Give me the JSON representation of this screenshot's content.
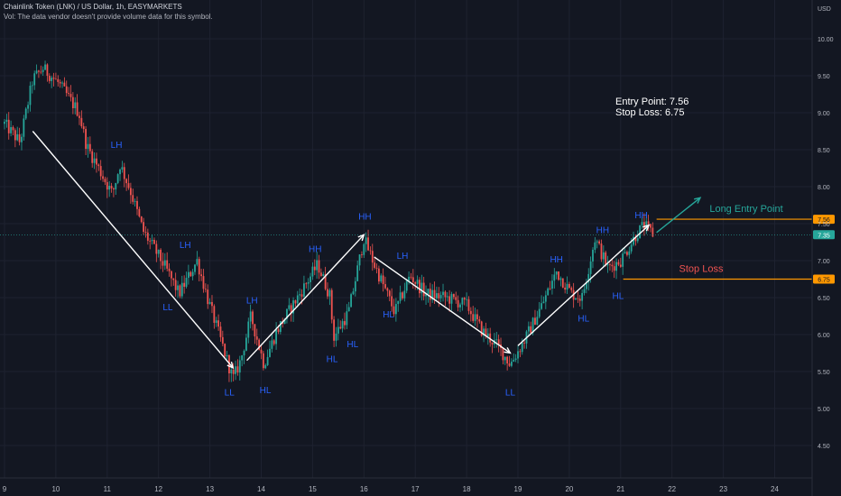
{
  "header": {
    "title": "Chainlink Token (LNK) / US Dollar, 1h, EASYMARKETS",
    "volume_note": "Vol: The data vendor doesn't provide volume data for this symbol."
  },
  "notes": {
    "entry": "Entry Point: 7.56",
    "stop": "Stop Loss: 6.75"
  },
  "colors": {
    "background": "#131722",
    "up": "#26a69a",
    "down": "#ef5350",
    "pivot_label": "#2962ff",
    "level_line": "#ff9800",
    "long_entry_text": "#26a69a",
    "stop_loss_text": "#ef5350",
    "current_price_box": "#26a69a"
  },
  "chart_data": {
    "type": "candlestick",
    "symbol": "Chainlink Token (LNK) / US Dollar",
    "interval": "1h",
    "currency": "USD",
    "x_ticks": [
      "9",
      "10",
      "11",
      "12",
      "13",
      "14",
      "15",
      "16",
      "17",
      "18",
      "19",
      "20",
      "21",
      "22",
      "23",
      "24"
    ],
    "y_ticks": [
      "10.00",
      "9.50",
      "9.00",
      "8.50",
      "8.00",
      "7.50",
      "7.00",
      "6.50",
      "6.00",
      "5.50",
      "5.00",
      "4.50"
    ],
    "ylim": [
      4.1,
      10.4
    ],
    "price_path": [
      {
        "day": 9.0,
        "price": 8.85
      },
      {
        "day": 9.3,
        "price": 8.6
      },
      {
        "day": 9.55,
        "price": 9.45
      },
      {
        "day": 9.75,
        "price": 9.6
      },
      {
        "day": 10.05,
        "price": 9.4
      },
      {
        "day": 10.45,
        "price": 9.0
      },
      {
        "day": 10.6,
        "price": 8.55
      },
      {
        "day": 11.1,
        "price": 7.9
      },
      {
        "day": 11.25,
        "price": 8.3
      },
      {
        "day": 11.45,
        "price": 7.95
      },
      {
        "day": 11.7,
        "price": 7.4
      },
      {
        "day": 12.1,
        "price": 6.95
      },
      {
        "day": 12.4,
        "price": 6.55
      },
      {
        "day": 12.75,
        "price": 7.0
      },
      {
        "day": 12.95,
        "price": 6.5
      },
      {
        "day": 13.2,
        "price": 5.95
      },
      {
        "day": 13.45,
        "price": 5.4
      },
      {
        "day": 13.6,
        "price": 5.65
      },
      {
        "day": 13.8,
        "price": 6.25
      },
      {
        "day": 14.05,
        "price": 5.6
      },
      {
        "day": 14.3,
        "price": 6.05
      },
      {
        "day": 14.75,
        "price": 6.55
      },
      {
        "day": 15.1,
        "price": 6.95
      },
      {
        "day": 15.35,
        "price": 6.5
      },
      {
        "day": 15.4,
        "price": 5.95
      },
      {
        "day": 15.7,
        "price": 6.3
      },
      {
        "day": 16.0,
        "price": 7.3
      },
      {
        "day": 16.2,
        "price": 6.95
      },
      {
        "day": 16.45,
        "price": 6.55
      },
      {
        "day": 16.6,
        "price": 6.3
      },
      {
        "day": 16.9,
        "price": 6.8
      },
      {
        "day": 17.2,
        "price": 6.55
      },
      {
        "day": 17.6,
        "price": 6.5
      },
      {
        "day": 18.0,
        "price": 6.4
      },
      {
        "day": 18.3,
        "price": 6.05
      },
      {
        "day": 18.6,
        "price": 5.85
      },
      {
        "day": 18.85,
        "price": 5.6
      },
      {
        "day": 19.15,
        "price": 5.95
      },
      {
        "day": 19.5,
        "price": 6.45
      },
      {
        "day": 19.75,
        "price": 6.85
      },
      {
        "day": 20.05,
        "price": 6.55
      },
      {
        "day": 20.25,
        "price": 6.5
      },
      {
        "day": 20.5,
        "price": 7.3
      },
      {
        "day": 20.75,
        "price": 6.9
      },
      {
        "day": 21.0,
        "price": 7.0
      },
      {
        "day": 21.3,
        "price": 7.35
      },
      {
        "day": 21.45,
        "price": 7.48
      },
      {
        "day": 21.65,
        "price": 7.35
      }
    ],
    "pivots": [
      {
        "label": "LH",
        "day": 11.18,
        "price": 8.45,
        "pos": "above"
      },
      {
        "label": "LH",
        "day": 12.52,
        "price": 7.1,
        "pos": "above"
      },
      {
        "label": "LL",
        "day": 12.18,
        "price": 6.5,
        "pos": "below"
      },
      {
        "label": "LL",
        "day": 13.38,
        "price": 5.35,
        "pos": "below"
      },
      {
        "label": "LH",
        "day": 13.82,
        "price": 6.35,
        "pos": "above"
      },
      {
        "label": "HL",
        "day": 14.08,
        "price": 5.38,
        "pos": "below"
      },
      {
        "label": "HH",
        "day": 15.05,
        "price": 7.04,
        "pos": "above"
      },
      {
        "label": "HL",
        "day": 15.78,
        "price": 6.0,
        "pos": "below"
      },
      {
        "label": "HL",
        "day": 15.38,
        "price": 5.8,
        "pos": "below"
      },
      {
        "label": "HH",
        "day": 16.02,
        "price": 7.48,
        "pos": "above"
      },
      {
        "label": "HL",
        "day": 16.48,
        "price": 6.4,
        "pos": "below"
      },
      {
        "label": "LH",
        "day": 16.75,
        "price": 6.95,
        "pos": "above"
      },
      {
        "label": "LL",
        "day": 18.85,
        "price": 5.35,
        "pos": "below"
      },
      {
        "label": "HH",
        "day": 19.75,
        "price": 6.9,
        "pos": "above"
      },
      {
        "label": "HL",
        "day": 20.28,
        "price": 6.35,
        "pos": "below"
      },
      {
        "label": "HH",
        "day": 20.65,
        "price": 7.3,
        "pos": "above"
      },
      {
        "label": "HL",
        "day": 20.95,
        "price": 6.65,
        "pos": "below"
      },
      {
        "label": "HH",
        "day": 21.4,
        "price": 7.5,
        "pos": "above"
      }
    ],
    "trend_arrows": [
      {
        "from": {
          "day": 9.55,
          "price": 8.75
        },
        "to": {
          "day": 13.45,
          "price": 5.55
        }
      },
      {
        "from": {
          "day": 13.72,
          "price": 5.65
        },
        "to": {
          "day": 16.0,
          "price": 7.35
        }
      },
      {
        "from": {
          "day": 16.2,
          "price": 7.05
        },
        "to": {
          "day": 18.85,
          "price": 5.75
        }
      },
      {
        "from": {
          "day": 19.0,
          "price": 5.85
        },
        "to": {
          "day": 21.55,
          "price": 7.48
        }
      }
    ],
    "projection_arrow": {
      "from": {
        "day": 21.7,
        "price": 7.38
      },
      "to": {
        "day": 22.55,
        "price": 7.85
      }
    },
    "levels": [
      {
        "name": "Long Entry Point",
        "price": 7.56,
        "label": "7.56",
        "from_day": 21.7
      },
      {
        "name": "Stop Loss",
        "price": 6.75,
        "label": "6.75",
        "from_day": 21.05
      }
    ],
    "current_price": {
      "price": 7.35,
      "label": "7.35"
    },
    "legend_placement": "none",
    "grid": true
  }
}
